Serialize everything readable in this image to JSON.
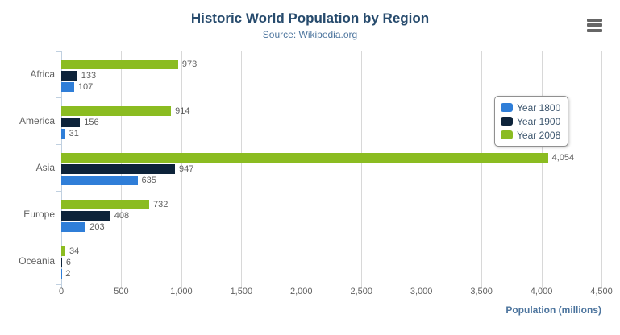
{
  "header": {
    "title": "Historic World Population by Region",
    "subtitle": "Source: Wikipedia.org"
  },
  "colors": {
    "title": "#274b6d",
    "subtitle": "#4d759e",
    "axis_title": "#4d759e",
    "tick_text": "#606060",
    "legend_text": "#3e576f",
    "gridline": "#d8d8d8",
    "axis_line": "#c0d0e0",
    "menu_icon": "#666666"
  },
  "menu": {
    "icon": "hamburger-menu-icon"
  },
  "legend": {
    "items": [
      {
        "label": "Year 1800",
        "color": "#2f7ed8"
      },
      {
        "label": "Year 1900",
        "color": "#0d233a"
      },
      {
        "label": "Year 2008",
        "color": "#8bbc21"
      }
    ]
  },
  "chart_data": {
    "type": "bar",
    "orientation": "horizontal",
    "title": "Historic World Population by Region",
    "subtitle": "Source: Wikipedia.org",
    "categories": [
      "Africa",
      "America",
      "Asia",
      "Europe",
      "Oceania"
    ],
    "series": [
      {
        "name": "Year 1800",
        "color": "#2f7ed8",
        "values": [
          107,
          31,
          635,
          203,
          2
        ]
      },
      {
        "name": "Year 1900",
        "color": "#0d233a",
        "values": [
          133,
          156,
          947,
          408,
          6
        ]
      },
      {
        "name": "Year 2008",
        "color": "#8bbc21",
        "values": [
          973,
          914,
          4054,
          732,
          34
        ]
      }
    ],
    "bar_display_order_top_to_bottom": [
      "Year 2008",
      "Year 1900",
      "Year 1800"
    ],
    "data_labels": true,
    "xlabel": "Population (millions)",
    "xlim": [
      0,
      4500
    ],
    "x_ticks": [
      0,
      500,
      1000,
      1500,
      2000,
      2500,
      3000,
      3500,
      4000,
      4500
    ],
    "x_tick_labels": [
      "0",
      "500",
      "1,000",
      "1,500",
      "2,000",
      "2,500",
      "3,000",
      "3,500",
      "4,000",
      "4,500"
    ],
    "grid": "vertical",
    "legend_position": "right-inside"
  }
}
